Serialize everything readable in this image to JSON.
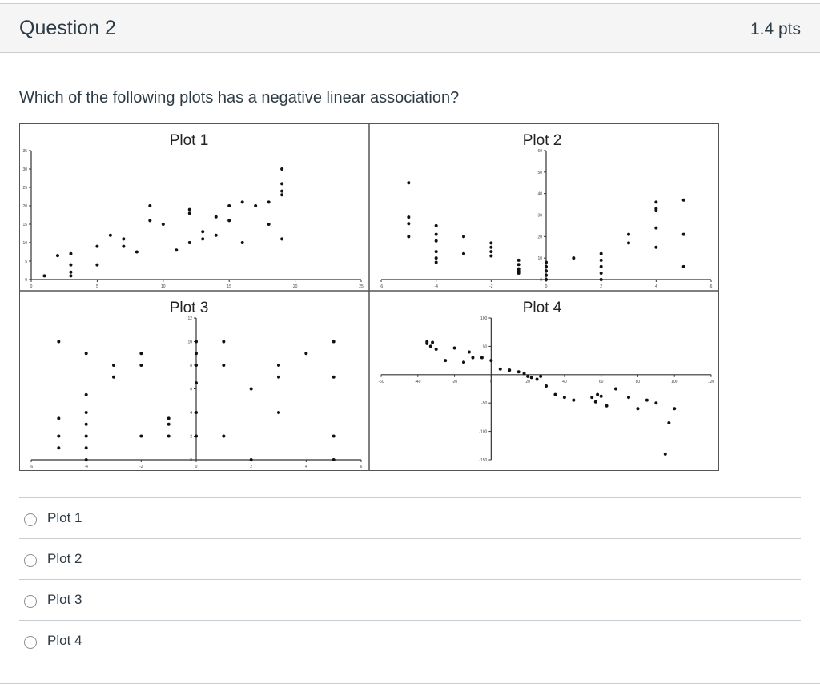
{
  "question": {
    "title": "Question 2",
    "points": "1.4 pts",
    "text": "Which of the following plots has a negative linear association?"
  },
  "answers": [
    {
      "label": "Plot 1"
    },
    {
      "label": "Plot 2"
    },
    {
      "label": "Plot 3"
    },
    {
      "label": "Plot 4"
    }
  ],
  "chart_data": [
    {
      "type": "scatter",
      "title": "Plot 1",
      "xlim": [
        0,
        25
      ],
      "ylim": [
        0,
        35
      ],
      "xticks": [
        0,
        5,
        10,
        15,
        20,
        25
      ],
      "yticks": [
        0,
        5,
        10,
        15,
        20,
        25,
        30,
        35
      ],
      "x": [
        1,
        2,
        3,
        3,
        3,
        3,
        5,
        5,
        6,
        7,
        7,
        8,
        9,
        9,
        10,
        11,
        12,
        12,
        12,
        13,
        13,
        14,
        14,
        15,
        15,
        16,
        16,
        17,
        18,
        18,
        19,
        19,
        19,
        19,
        19
      ],
      "y": [
        1,
        6.5,
        7,
        4,
        2,
        1,
        9,
        4,
        12,
        11,
        9,
        7.5,
        16,
        20,
        15,
        8,
        19,
        10,
        18,
        11,
        13,
        17,
        12,
        20,
        16,
        21,
        10,
        20,
        21,
        15,
        11,
        26,
        23,
        24,
        30
      ]
    },
    {
      "type": "scatter",
      "title": "Plot 2",
      "xlim": [
        -6,
        6
      ],
      "ylim": [
        0,
        60
      ],
      "xticks": [
        -6,
        -4,
        -2,
        0,
        2,
        4,
        6
      ],
      "yticks": [
        0,
        10,
        20,
        30,
        40,
        50,
        60
      ],
      "x": [
        -5,
        -5,
        -5,
        -5,
        -4,
        -4,
        -4,
        -4,
        -4,
        -4,
        -3,
        -3,
        -2,
        -2,
        -2,
        -2,
        -1,
        -1,
        -1,
        -1,
        -1,
        0,
        0,
        0,
        0,
        0,
        1,
        2,
        2,
        2,
        2,
        2,
        3,
        3,
        4,
        4,
        4,
        4,
        4,
        5,
        5,
        5
      ],
      "y": [
        45,
        29,
        26,
        20,
        25,
        21,
        18,
        13,
        10,
        8,
        20,
        12,
        17,
        15,
        13,
        11,
        9,
        7,
        5,
        4,
        3,
        8,
        6,
        4,
        2,
        0,
        10,
        12,
        9,
        6,
        3,
        0,
        21,
        17,
        36,
        33,
        32,
        24,
        15,
        37,
        21,
        6
      ]
    },
    {
      "type": "scatter",
      "title": "Plot 3",
      "xlim": [
        -6,
        6
      ],
      "ylim": [
        0,
        12
      ],
      "xticks": [
        -6,
        -4,
        -2,
        0,
        2,
        4,
        6
      ],
      "yticks": [
        0,
        2,
        4,
        6,
        8,
        10,
        12
      ],
      "x": [
        -5,
        -5,
        -5,
        -5,
        -4,
        -4,
        -4,
        -4,
        -4,
        -4,
        -4,
        -3,
        -3,
        -2,
        -2,
        -2,
        -1,
        -1,
        -1,
        0,
        0,
        0,
        0,
        0,
        0,
        1,
        1,
        1,
        2,
        2,
        3,
        3,
        3,
        4,
        5,
        5,
        5,
        5
      ],
      "y": [
        10,
        3.5,
        2,
        1,
        9,
        5.5,
        4,
        3,
        2,
        1,
        0,
        8,
        7,
        9,
        8,
        2,
        3.5,
        3,
        2,
        10,
        9,
        8,
        6.5,
        4,
        2,
        10,
        8,
        2,
        6,
        0,
        8,
        7,
        4,
        9,
        10,
        7,
        2,
        0
      ]
    },
    {
      "type": "scatter",
      "title": "Plot 4",
      "xlim": [
        -60,
        120
      ],
      "ylim": [
        -150,
        100
      ],
      "xticks": [
        -60,
        -40,
        -20,
        0,
        20,
        40,
        60,
        80,
        100,
        120
      ],
      "yticks": [
        -150,
        -100,
        -50,
        50,
        100
      ],
      "x": [
        -35,
        -35,
        -33,
        -32,
        -30,
        -25,
        -20,
        -15,
        -12,
        -10,
        -5,
        0,
        5,
        10,
        15,
        18,
        20,
        22,
        25,
        27,
        30,
        35,
        40,
        45,
        55,
        57,
        58,
        60,
        63,
        68,
        75,
        80,
        85,
        90,
        95,
        97,
        100
      ],
      "y": [
        58,
        55,
        50,
        57,
        45,
        25,
        47,
        22,
        40,
        30,
        30,
        25,
        10,
        8,
        5,
        2,
        -3,
        -5,
        -8,
        -3,
        -20,
        -35,
        -40,
        -45,
        -40,
        -48,
        -35,
        -38,
        -55,
        -25,
        -40,
        -60,
        -45,
        -50,
        -140,
        -85,
        -60
      ]
    }
  ]
}
